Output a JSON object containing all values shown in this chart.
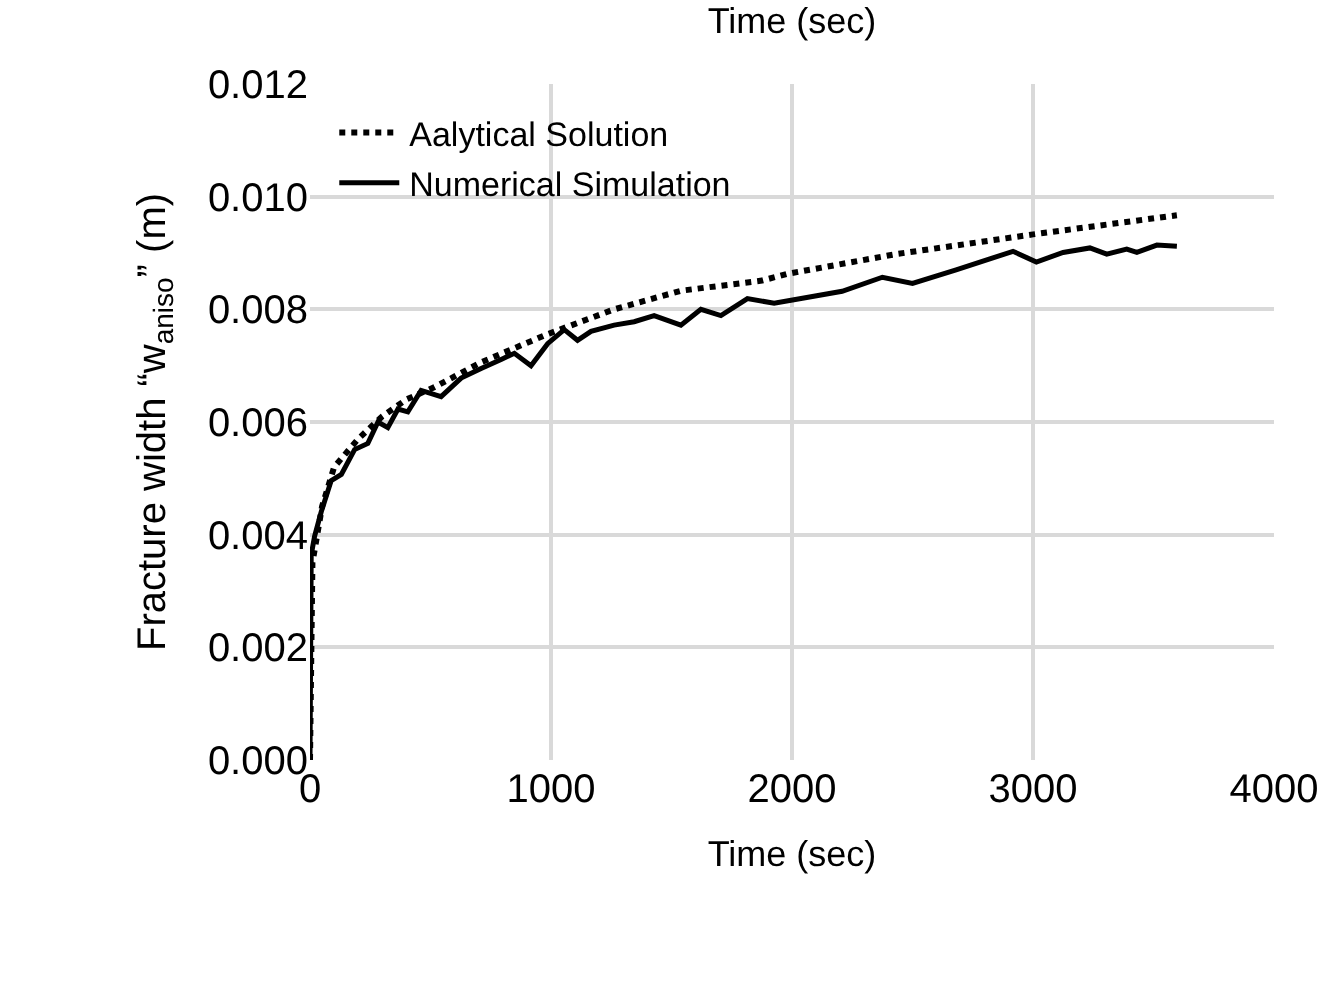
{
  "chart_data": {
    "type": "line",
    "title": "Time (sec)",
    "xlabel": "Time (sec)",
    "ylabel": "Fracture width “w$_{aniso}$” (m)",
    "xlim": [
      0,
      4000
    ],
    "xticks": [
      0,
      1000,
      2000,
      3000,
      4000
    ],
    "ylim": [
      0,
      0.012
    ],
    "yticks": [
      {
        "value": 0,
        "label": "0.000"
      },
      {
        "value": 0.002,
        "label": "0.002"
      },
      {
        "value": 0.004,
        "label": "0.004"
      },
      {
        "value": 0.006,
        "label": "0.006"
      },
      {
        "value": 0.008,
        "label": "0.008"
      },
      {
        "value": 0.01,
        "label": "0.010"
      },
      {
        "value": 0.012,
        "label": "0.012"
      }
    ],
    "grid": true,
    "legend": "top left",
    "marker": "none",
    "series": [
      {
        "name": "Aalytical Solution",
        "color": "#000000",
        "line_style": "dotted",
        "x": [
          0,
          10,
          50,
          100,
          200,
          300,
          400,
          517,
          710,
          986,
          1262,
          1539,
          1875,
          1981,
          2431,
          3000,
          3597
        ],
        "values": [
          0,
          0.0035,
          0.0045,
          0.0052,
          0.0057,
          0.0061,
          0.0064,
          0.00662,
          0.00706,
          0.00756,
          0.008,
          0.00833,
          0.00851,
          0.00863,
          0.00898,
          0.00933,
          0.00967
        ]
      },
      {
        "name": "Numerical Simulation",
        "color": "#000000",
        "line_style": "solid",
        "x": [
          0,
          5,
          19,
          47,
          88,
          130,
          185,
          240,
          282,
          323,
          365,
          406,
          461,
          544,
          627,
          710,
          793,
          848,
          917,
          986,
          1055,
          1110,
          1166,
          1262,
          1345,
          1428,
          1539,
          1622,
          1705,
          1815,
          1926,
          2008,
          2208,
          2375,
          2500,
          2681,
          2917,
          3014,
          3125,
          3236,
          3306,
          3389,
          3431,
          3514,
          3597
        ],
        "values": [
          0,
          0.00364,
          0.00397,
          0.00441,
          0.00496,
          0.00507,
          0.00551,
          0.00562,
          0.006,
          0.0059,
          0.00623,
          0.00618,
          0.00656,
          0.00645,
          0.00678,
          0.00695,
          0.00711,
          0.00722,
          0.007,
          0.00739,
          0.00764,
          0.00745,
          0.00761,
          0.00772,
          0.00778,
          0.00789,
          0.00772,
          0.008,
          0.00789,
          0.00819,
          0.00811,
          0.00817,
          0.00832,
          0.00857,
          0.00846,
          0.0087,
          0.00903,
          0.00884,
          0.00901,
          0.00909,
          0.00898,
          0.00907,
          0.00901,
          0.00914,
          0.00912
        ]
      }
    ]
  }
}
